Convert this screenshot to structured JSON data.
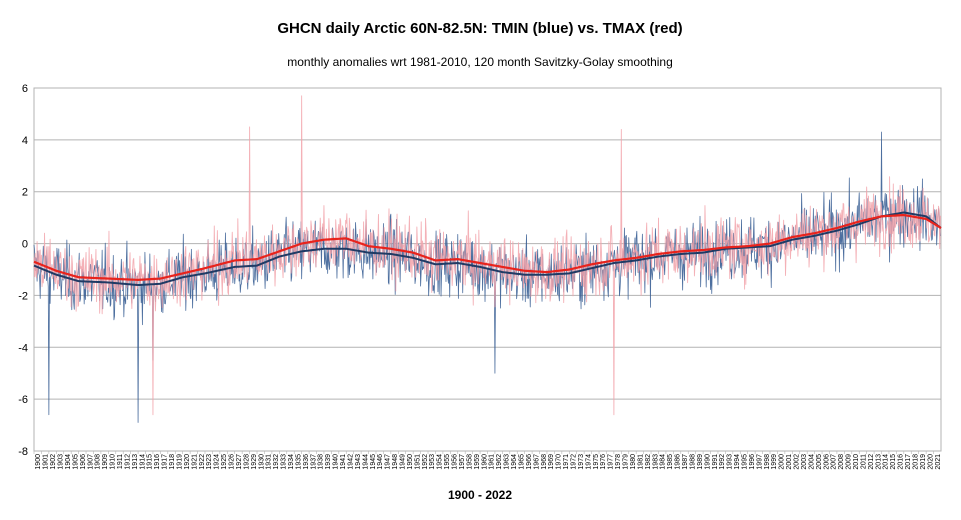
{
  "chart_data": {
    "type": "line",
    "title": "GHCN daily Arctic 60N-82.5N: TMIN (blue) vs. TMAX (red)",
    "subtitle": "monthly anomalies wrt 1981-2010, 120 month Savitzky-Golay smoothing",
    "xlabel": "1900 - 2022",
    "ylabel": "",
    "ylim": [
      -8,
      6
    ],
    "yticks": [
      -8,
      -6,
      -4,
      -2,
      0,
      2,
      4,
      6
    ],
    "xlim": [
      1900,
      2022
    ],
    "grid": true,
    "legend": "none",
    "colors": {
      "tmin_monthly": "#3a5f95",
      "tmax_monthly": "#f2a3aa",
      "tmin_smooth": "#1f3a64",
      "tmax_smooth": "#e8231c"
    },
    "series": [
      {
        "name": "TMIN 120-month smoothing",
        "x": [
          1900,
          1903,
          1906,
          1910,
          1914,
          1917,
          1920,
          1923,
          1927,
          1930,
          1933,
          1936,
          1939,
          1942,
          1945,
          1948,
          1951,
          1954,
          1957,
          1960,
          1963,
          1966,
          1969,
          1972,
          1975,
          1978,
          1981,
          1984,
          1987,
          1990,
          1993,
          1996,
          1999,
          2002,
          2005,
          2008,
          2011,
          2014,
          2017,
          2020,
          2022
        ],
        "values": [
          -0.85,
          -1.2,
          -1.45,
          -1.5,
          -1.6,
          -1.55,
          -1.3,
          -1.15,
          -0.9,
          -0.85,
          -0.5,
          -0.3,
          -0.2,
          -0.2,
          -0.35,
          -0.4,
          -0.55,
          -0.8,
          -0.75,
          -0.9,
          -1.1,
          -1.2,
          -1.2,
          -1.15,
          -0.95,
          -0.75,
          -0.65,
          -0.5,
          -0.4,
          -0.35,
          -0.2,
          -0.15,
          -0.1,
          0.15,
          0.3,
          0.5,
          0.75,
          1.05,
          1.2,
          1.05,
          0.6
        ]
      },
      {
        "name": "TMAX 120-month smoothing",
        "x": [
          1900,
          1903,
          1906,
          1910,
          1914,
          1917,
          1920,
          1923,
          1927,
          1930,
          1933,
          1936,
          1939,
          1942,
          1945,
          1948,
          1951,
          1954,
          1957,
          1960,
          1963,
          1966,
          1969,
          1972,
          1975,
          1978,
          1981,
          1984,
          1987,
          1990,
          1993,
          1996,
          1999,
          2002,
          2005,
          2008,
          2011,
          2014,
          2017,
          2020,
          2022
        ],
        "values": [
          -0.7,
          -1.05,
          -1.3,
          -1.35,
          -1.4,
          -1.35,
          -1.15,
          -0.95,
          -0.65,
          -0.6,
          -0.3,
          0.0,
          0.15,
          0.2,
          -0.1,
          -0.2,
          -0.35,
          -0.65,
          -0.6,
          -0.75,
          -0.9,
          -1.05,
          -1.1,
          -1.0,
          -0.8,
          -0.65,
          -0.55,
          -0.4,
          -0.3,
          -0.25,
          -0.15,
          -0.1,
          0.0,
          0.25,
          0.4,
          0.6,
          0.85,
          1.05,
          1.1,
          0.95,
          0.6
        ]
      },
      {
        "name": "TMIN monthly anomalies",
        "approximate": true,
        "notable_values": [
          {
            "x": 1902,
            "y": -6.6
          },
          {
            "x": 1914,
            "y": -6.9
          },
          {
            "x": 1916,
            "y": -4.5
          },
          {
            "x": 1962,
            "y": -5.0
          },
          {
            "x": 2014,
            "y": 4.3
          }
        ]
      },
      {
        "name": "TMAX monthly anomalies",
        "approximate": true,
        "notable_values": [
          {
            "x": 1916,
            "y": -6.6
          },
          {
            "x": 1929,
            "y": 4.5
          },
          {
            "x": 1936,
            "y": 5.7
          },
          {
            "x": 1978,
            "y": -6.6
          },
          {
            "x": 1979,
            "y": 4.4
          }
        ]
      }
    ]
  }
}
